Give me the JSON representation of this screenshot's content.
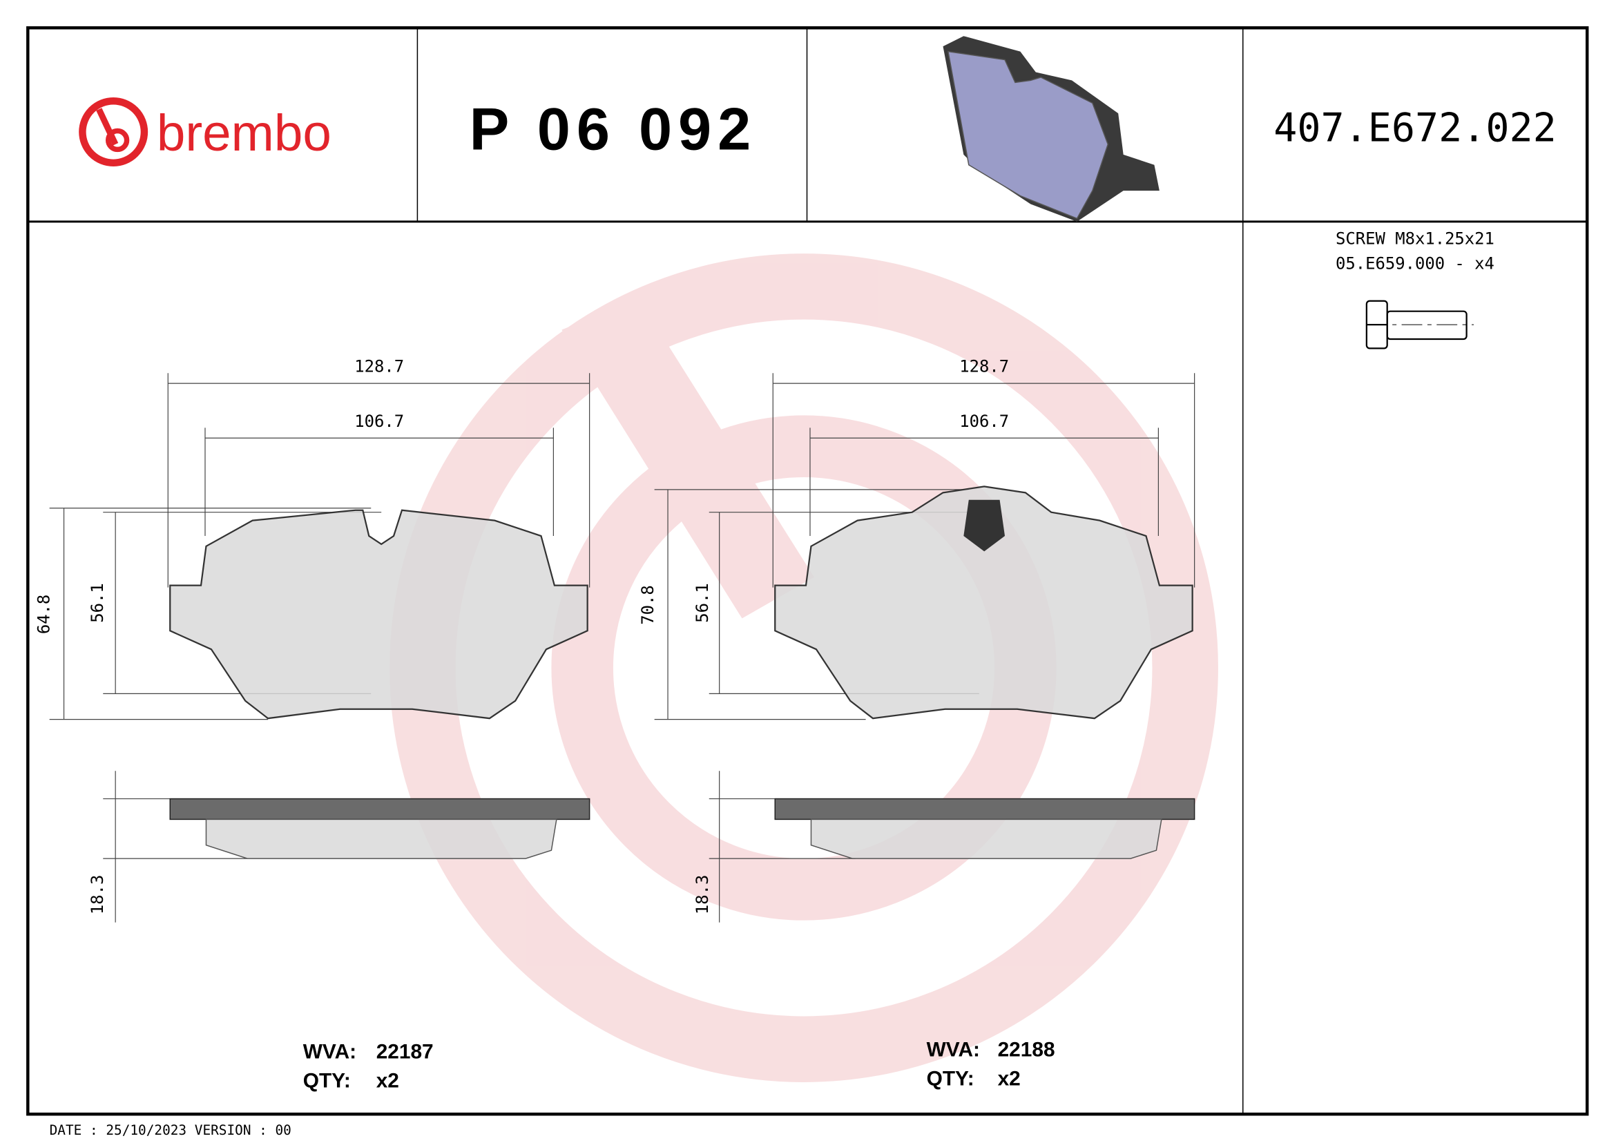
{
  "header": {
    "brand": "brembo",
    "part_number": "P 06 092",
    "reference": "407.E672.022"
  },
  "accessory": {
    "line1": "SCREW M8x1.25x21",
    "line2": "05.E659.000 - x4"
  },
  "pads": [
    {
      "width_outer": "128.7",
      "width_inner": "106.7",
      "height_total": "64.8",
      "height_inner": "56.1",
      "thickness": "18.3",
      "wva_label": "WVA:",
      "wva": "22187",
      "qty_label": "QTY:",
      "qty": "x2"
    },
    {
      "width_outer": "128.7",
      "width_inner": "106.7",
      "height_total": "70.8",
      "height_inner": "56.1",
      "thickness": "18.3",
      "wva_label": "WVA:",
      "wva": "22188",
      "qty_label": "QTY:",
      "qty": "x2"
    }
  ],
  "footer": {
    "date_version": "DATE : 25/10/2023 VERSION : 00"
  },
  "colors": {
    "brand_red": "#e2242b",
    "watermark": "#f7d9db",
    "pad_fill": "#d9d9d9",
    "plate_fill": "#6b6b6b",
    "render_fill": "#9a9cc8"
  }
}
